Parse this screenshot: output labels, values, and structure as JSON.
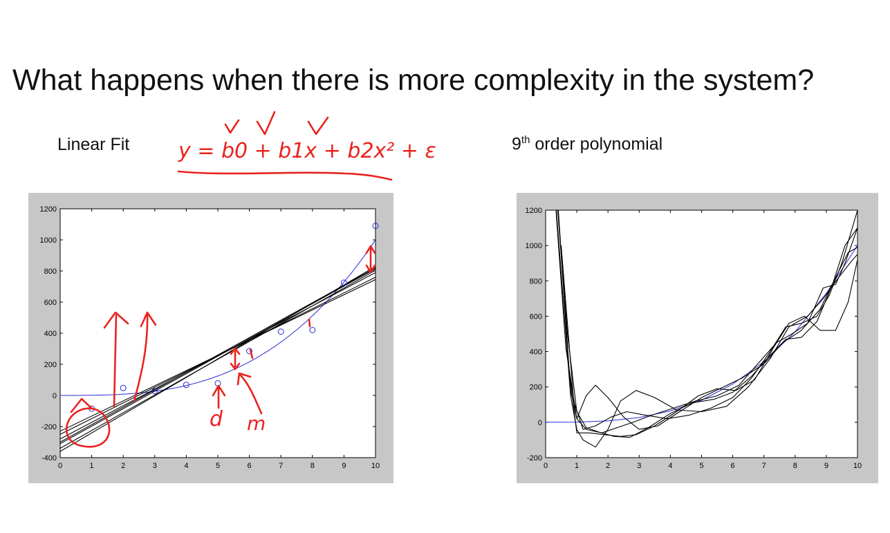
{
  "slide": {
    "title": "What happens when there is more complexity in the system?",
    "left_label": "Linear Fit",
    "right_label_prefix": "9",
    "right_label_sup": "th",
    "right_label_suffix": " order polynomial",
    "handwritten_equation": "y = b0 + b1x + b2x² + ε",
    "handwritten_d": "d",
    "handwritten_m": "m",
    "annotation_color": "#e8231f"
  },
  "chart_data": [
    {
      "type": "scatter",
      "title": "",
      "xlabel": "",
      "ylabel": "",
      "xlim": [
        0,
        10
      ],
      "ylim": [
        -400,
        1200
      ],
      "xticks": [
        0,
        1,
        2,
        3,
        4,
        5,
        6,
        7,
        8,
        9,
        10
      ],
      "yticks": [
        -400,
        -200,
        0,
        200,
        400,
        600,
        800,
        1000,
        1200
      ],
      "grid": false,
      "points": {
        "name": "",
        "color": "#2a2ad6",
        "x": [
          1,
          2,
          3,
          4,
          5,
          6,
          7,
          8,
          9,
          10
        ],
        "y": [
          -85,
          48,
          28,
          68,
          78,
          285,
          410,
          420,
          725,
          1090
        ]
      },
      "series": [
        {
          "name": "",
          "color": "#2a2ad6",
          "kind": "curve",
          "formula": "x^3",
          "x_range": [
            0,
            10
          ]
        },
        {
          "name": "",
          "color": "#000000",
          "kind": "line",
          "x": [
            0,
            10
          ],
          "y": [
            -310,
            815
          ]
        },
        {
          "name": "",
          "color": "#000000",
          "kind": "line",
          "x": [
            0,
            10
          ],
          "y": [
            -340,
            805
          ]
        },
        {
          "name": "",
          "color": "#000000",
          "kind": "line",
          "x": [
            0,
            10
          ],
          "y": [
            -280,
            790
          ]
        },
        {
          "name": "",
          "color": "#000000",
          "kind": "line",
          "x": [
            0,
            10
          ],
          "y": [
            -360,
            830
          ]
        },
        {
          "name": "",
          "color": "#000000",
          "kind": "line",
          "x": [
            0,
            10
          ],
          "y": [
            -250,
            760
          ]
        },
        {
          "name": "",
          "color": "#000000",
          "kind": "line",
          "x": [
            0,
            10
          ],
          "y": [
            -300,
            820
          ]
        },
        {
          "name": "",
          "color": "#000000",
          "kind": "line",
          "x": [
            0,
            10
          ],
          "y": [
            -230,
            745
          ]
        }
      ]
    },
    {
      "type": "line",
      "title": "",
      "xlabel": "",
      "ylabel": "",
      "xlim": [
        0,
        10
      ],
      "ylim": [
        -200,
        1200
      ],
      "xticks": [
        0,
        1,
        2,
        3,
        4,
        5,
        6,
        7,
        8,
        9,
        10
      ],
      "yticks": [
        -200,
        0,
        200,
        400,
        600,
        800,
        1000,
        1200
      ],
      "grid": false,
      "series": [
        {
          "name": "",
          "color": "#2a2ad6",
          "kind": "curve",
          "formula": "x^3",
          "x": [
            0,
            1,
            2,
            3,
            4,
            5,
            6,
            7,
            8,
            9,
            10
          ],
          "y": [
            0,
            1,
            8,
            27,
            64,
            125,
            216,
            343,
            512,
            729,
            1000
          ]
        },
        {
          "name": "",
          "color": "#000000",
          "x": [
            0.3,
            0.7,
            1.0,
            1.3,
            1.7,
            2.2,
            2.7,
            3.3,
            4.0,
            4.7,
            5.4,
            6.0,
            6.6,
            7.2,
            7.7,
            8.2,
            8.7,
            9.2,
            9.6,
            10.0
          ],
          "y": [
            1400,
            500,
            60,
            -30,
            -55,
            -80,
            -85,
            -30,
            50,
            110,
            130,
            170,
            260,
            380,
            470,
            480,
            570,
            780,
            1000,
            1100
          ]
        },
        {
          "name": "",
          "color": "#000000",
          "x": [
            0.25,
            0.65,
            1.0,
            1.3,
            1.6,
            2.0,
            2.5,
            3.0,
            3.6,
            4.3,
            5.0,
            5.7,
            6.3,
            7.0,
            7.6,
            8.2,
            8.8,
            9.3,
            9.7,
            10.0
          ],
          "y": [
            1400,
            420,
            20,
            150,
            210,
            140,
            30,
            -40,
            -20,
            60,
            140,
            200,
            250,
            330,
            450,
            520,
            640,
            820,
            960,
            990
          ]
        },
        {
          "name": "",
          "color": "#000000",
          "x": [
            0.3,
            0.8,
            1.0,
            1.2,
            1.6,
            2.0,
            2.4,
            2.9,
            3.5,
            4.2,
            5.0,
            5.8,
            6.5,
            7.2,
            7.8,
            8.4,
            8.9,
            9.4,
            9.8,
            10.0
          ],
          "y": [
            1300,
            150,
            -40,
            -100,
            -140,
            -40,
            120,
            180,
            140,
            70,
            60,
            90,
            200,
            360,
            540,
            600,
            700,
            820,
            910,
            950
          ]
        },
        {
          "name": "",
          "color": "#000000",
          "x": [
            0.35,
            0.75,
            1.0,
            1.4,
            1.9,
            2.4,
            2.9,
            3.5,
            4.2,
            4.9,
            5.5,
            6.1,
            6.7,
            7.3,
            7.8,
            8.3,
            8.8,
            9.3,
            9.7,
            10.0
          ],
          "y": [
            1350,
            300,
            -60,
            -60,
            -70,
            -80,
            -70,
            -20,
            60,
            150,
            190,
            180,
            240,
            420,
            560,
            600,
            520,
            520,
            680,
            920
          ]
        },
        {
          "name": "",
          "color": "#000000",
          "x": [
            0.4,
            0.8,
            1.0,
            1.3,
            1.8,
            2.3,
            2.8,
            3.4,
            4.1,
            4.8,
            5.5,
            6.2,
            6.8,
            7.4,
            7.9,
            8.4,
            8.9,
            9.3,
            9.6,
            10.0
          ],
          "y": [
            1200,
            180,
            20,
            -40,
            -60,
            -30,
            0,
            40,
            80,
            120,
            150,
            210,
            330,
            450,
            500,
            560,
            760,
            780,
            900,
            1100
          ]
        },
        {
          "name": "",
          "color": "#000000",
          "x": [
            0.5,
            0.9,
            1.2,
            1.6,
            2.1,
            2.6,
            3.2,
            3.9,
            4.6,
            5.3,
            6.0,
            6.6,
            7.2,
            7.7,
            8.2,
            8.7,
            9.1,
            9.5,
            9.8,
            10.0
          ],
          "y": [
            1000,
            120,
            -40,
            -20,
            30,
            60,
            40,
            20,
            40,
            80,
            140,
            250,
            400,
            540,
            560,
            600,
            720,
            900,
            1080,
            1200
          ]
        }
      ]
    }
  ]
}
